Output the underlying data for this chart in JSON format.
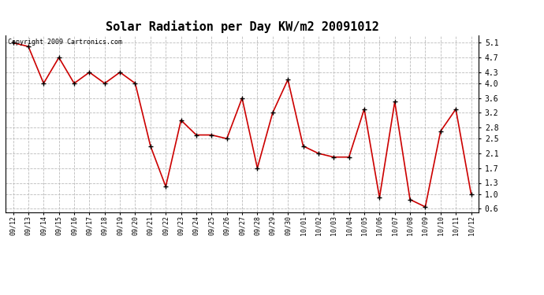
{
  "title": "Solar Radiation per Day KW/m2 20091012",
  "copyright_text": "Copyright 2009 Cartronics.com",
  "dates": [
    "09/12",
    "09/13",
    "09/14",
    "09/15",
    "09/16",
    "09/17",
    "09/18",
    "09/19",
    "09/20",
    "09/21",
    "09/22",
    "09/23",
    "09/24",
    "09/25",
    "09/26",
    "09/27",
    "09/28",
    "09/29",
    "09/30",
    "10/01",
    "10/02",
    "10/03",
    "10/04",
    "10/05",
    "10/06",
    "10/07",
    "10/08",
    "10/09",
    "10/10",
    "10/11",
    "10/12"
  ],
  "values": [
    5.1,
    5.0,
    4.0,
    4.7,
    4.0,
    4.3,
    4.0,
    4.3,
    4.0,
    2.3,
    1.2,
    3.0,
    2.6,
    2.6,
    2.5,
    3.6,
    1.7,
    3.2,
    4.1,
    2.3,
    2.1,
    2.0,
    2.0,
    3.3,
    0.9,
    3.5,
    0.85,
    0.65,
    2.7,
    3.3,
    1.0
  ],
  "line_color": "#cc0000",
  "marker_color": "#000000",
  "bg_color": "#ffffff",
  "grid_color": "#bbbbbb",
  "yticks": [
    0.6,
    1.0,
    1.3,
    1.7,
    2.1,
    2.5,
    2.8,
    3.2,
    3.6,
    4.0,
    4.3,
    4.7,
    5.1
  ],
  "ylim": [
    0.5,
    5.3
  ],
  "title_fontsize": 11,
  "copyright_fontsize": 6,
  "tick_fontsize": 6,
  "ytick_fontsize": 7
}
